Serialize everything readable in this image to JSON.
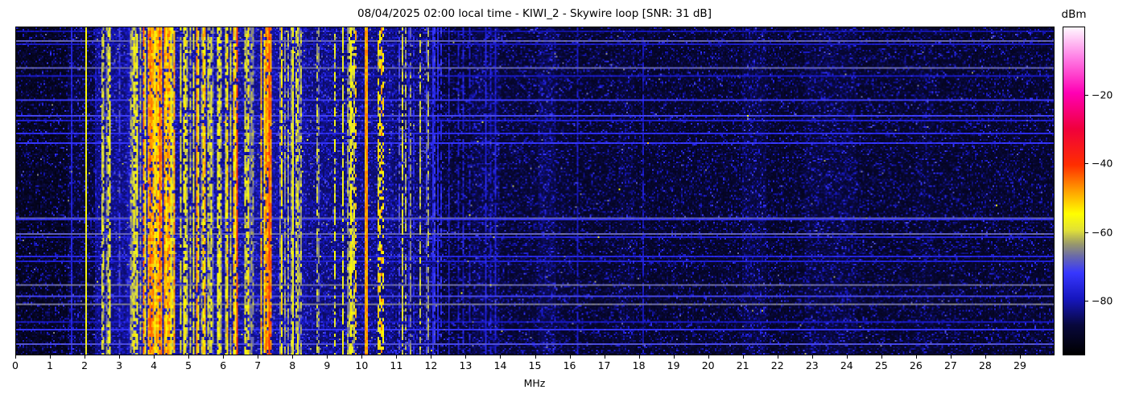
{
  "chart_data": {
    "type": "heatmap",
    "subtype": "radio-spectrogram-waterfall",
    "title": "08/04/2025 02:00 local time - KIWI_2 - Skywire loop [SNR: 31 dB]",
    "xlabel": "MHz",
    "colorbar_label": "dBm",
    "x_range_mhz": [
      0,
      30
    ],
    "x_ticks_mhz": [
      0,
      1,
      2,
      3,
      4,
      5,
      6,
      7,
      8,
      9,
      10,
      11,
      12,
      13,
      14,
      15,
      16,
      17,
      18,
      19,
      20,
      21,
      22,
      23,
      24,
      25,
      26,
      27,
      28,
      29
    ],
    "value_range_dbm": [
      -96,
      0
    ],
    "colorbar_ticks": [
      {
        "value": -20,
        "label": "−20"
      },
      {
        "value": -40,
        "label": "−40"
      },
      {
        "value": -60,
        "label": "−60"
      },
      {
        "value": -80,
        "label": "−80"
      }
    ],
    "legend_position": "right-colorbar",
    "grid": false,
    "background_noise_bands_dbm": [
      {
        "f1": 0.0,
        "f2": 1.5,
        "level": -93
      },
      {
        "f1": 1.5,
        "f2": 2.28,
        "level": -90
      },
      {
        "f1": 2.28,
        "f2": 3.2,
        "level": -85
      },
      {
        "f1": 3.2,
        "f2": 4.6,
        "level": -82.5
      },
      {
        "f1": 4.6,
        "f2": 8.42,
        "level": -84
      },
      {
        "f1": 8.42,
        "f2": 10.9,
        "level": -85.5
      },
      {
        "f1": 10.9,
        "f2": 12.1,
        "level": -86.5
      },
      {
        "f1": 12.1,
        "f2": 16.0,
        "level": -90.5
      },
      {
        "f1": 16.0,
        "f2": 30.0,
        "level": -91.5
      }
    ],
    "soft_bright_columns_db": [
      {
        "f1": 13.2,
        "f2": 14.0,
        "boost": 2.0
      },
      {
        "f1": 15.1,
        "f2": 15.6,
        "boost": 2.5
      },
      {
        "f1": 17.4,
        "f2": 17.9,
        "boost": 1.5
      },
      {
        "f1": 21.0,
        "f2": 21.7,
        "boost": 2.5
      },
      {
        "f1": 22.8,
        "f2": 24.3,
        "boost": 2.0
      },
      {
        "f1": 26.0,
        "f2": 26.5,
        "boost": 1.0
      }
    ],
    "activity_bands": [
      {
        "f1": 2.32,
        "f2": 2.78,
        "density": 0.55,
        "level": -62,
        "spread": 6,
        "gap": 0.25
      },
      {
        "f1": 2.78,
        "f2": 3.18,
        "density": 0.3,
        "level": -68,
        "spread": 6,
        "gap": 0.3
      },
      {
        "f1": 3.3,
        "f2": 3.62,
        "density": 0.6,
        "level": -58,
        "spread": 6,
        "gap": 0.2
      },
      {
        "f1": 3.62,
        "f2": 4.02,
        "density": 0.75,
        "level": -52,
        "spread": 7,
        "gap": 0.15
      },
      {
        "f1": 4.02,
        "f2": 4.35,
        "density": 0.85,
        "level": -48,
        "spread": 6,
        "gap": 0.12
      },
      {
        "f1": 4.35,
        "f2": 4.62,
        "density": 0.7,
        "level": -54,
        "spread": 7,
        "gap": 0.15
      },
      {
        "f1": 4.62,
        "f2": 5.1,
        "density": 0.45,
        "level": -62,
        "spread": 7,
        "gap": 0.25
      },
      {
        "f1": 5.1,
        "f2": 5.48,
        "density": 0.55,
        "level": -58,
        "spread": 7,
        "gap": 0.2
      },
      {
        "f1": 5.48,
        "f2": 5.92,
        "density": 0.5,
        "level": -61,
        "spread": 7,
        "gap": 0.22
      },
      {
        "f1": 5.92,
        "f2": 6.42,
        "density": 0.65,
        "level": -56,
        "spread": 7,
        "gap": 0.18
      },
      {
        "f1": 6.42,
        "f2": 7.08,
        "density": 0.45,
        "level": -62,
        "spread": 8,
        "gap": 0.25
      },
      {
        "f1": 7.08,
        "f2": 7.62,
        "density": 0.75,
        "level": -50,
        "spread": 7,
        "gap": 0.13
      },
      {
        "f1": 7.62,
        "f2": 8.1,
        "density": 0.5,
        "level": -59,
        "spread": 7,
        "gap": 0.2
      },
      {
        "f1": 8.1,
        "f2": 8.42,
        "density": 0.4,
        "level": -60,
        "spread": 6,
        "gap": 0.25
      },
      {
        "f1": 8.55,
        "f2": 9.0,
        "density": 0.18,
        "level": -66,
        "spread": 6,
        "gap": 0.3
      },
      {
        "f1": 9.0,
        "f2": 9.95,
        "density": 0.3,
        "level": -62,
        "spread": 7,
        "gap": 0.3
      },
      {
        "f1": 10.28,
        "f2": 10.72,
        "density": 0.3,
        "level": -56,
        "spread": 8,
        "gap": 0.5
      },
      {
        "f1": 11.05,
        "f2": 12.1,
        "density": 0.22,
        "level": -70,
        "spread": 7,
        "gap": 0.35
      },
      {
        "f1": 12.15,
        "f2": 14.0,
        "density": 0.08,
        "level": -78,
        "spread": 4,
        "gap": 0.3
      }
    ],
    "carrier_lines": [
      {
        "f": 1.56,
        "level": -77,
        "width_cols": 1,
        "duty": 1.0
      },
      {
        "f": 2.02,
        "level": -57,
        "width_cols": 1,
        "duty": 1.0
      },
      {
        "f": 2.48,
        "level": -60,
        "width_cols": 1,
        "duty": 0.75
      },
      {
        "f": 5.21,
        "level": -47,
        "width_cols": 1,
        "duty": 0.85
      },
      {
        "f": 6.35,
        "level": -42,
        "width_cols": 1,
        "duty": 0.92
      },
      {
        "f": 7.31,
        "level": -42,
        "width_cols": 1,
        "duty": 0.92
      },
      {
        "f": 8.01,
        "level": -58,
        "width_cols": 1,
        "duty": 0.8
      },
      {
        "f": 9.41,
        "level": -57,
        "width_cols": 1,
        "duty": 0.8
      },
      {
        "f": 9.65,
        "level": -56,
        "width_cols": 1,
        "duty": 0.85
      },
      {
        "f": 9.82,
        "level": -50,
        "width_cols": 1,
        "duty": 0.5
      },
      {
        "f": 10.07,
        "level": -48,
        "width_cols": 2,
        "duty": 1.0
      },
      {
        "f": 10.46,
        "level": -52,
        "width_cols": 1,
        "duty": 0.45
      },
      {
        "f": 10.61,
        "level": -54,
        "width_cols": 1,
        "duty": 0.45
      },
      {
        "f": 11.14,
        "level": -60,
        "width_cols": 1,
        "duty": 0.8
      },
      {
        "f": 11.66,
        "level": -62,
        "width_cols": 1,
        "duty": 0.7
      },
      {
        "f": 11.9,
        "level": -63,
        "width_cols": 1,
        "duty": 0.7
      },
      {
        "f": 12.03,
        "level": -75,
        "width_cols": 1,
        "duty": 0.9
      },
      {
        "f": 12.16,
        "level": -76,
        "width_cols": 1,
        "duty": 0.9
      },
      {
        "f": 12.5,
        "level": -77,
        "width_cols": 1,
        "duty": 0.9
      },
      {
        "f": 13.57,
        "level": -77,
        "width_cols": 1,
        "duty": 0.9
      },
      {
        "f": 13.85,
        "level": -78,
        "width_cols": 1,
        "duty": 0.9
      },
      {
        "f": 16.2,
        "level": -80,
        "width_cols": 1,
        "duty": 0.85
      },
      {
        "f": 18.1,
        "level": -80,
        "width_cols": 1,
        "duty": 0.8
      }
    ],
    "colormap_stops": [
      [
        0.0,
        0,
        0,
        0
      ],
      [
        0.09,
        8,
        8,
        60
      ],
      [
        0.17,
        22,
        22,
        190
      ],
      [
        0.25,
        55,
        55,
        255
      ],
      [
        0.3,
        105,
        105,
        170
      ],
      [
        0.34,
        155,
        155,
        105
      ],
      [
        0.38,
        225,
        225,
        55
      ],
      [
        0.43,
        255,
        255,
        0
      ],
      [
        0.5,
        255,
        160,
        0
      ],
      [
        0.58,
        255,
        45,
        0
      ],
      [
        0.69,
        240,
        0,
        60
      ],
      [
        0.8,
        255,
        0,
        180
      ],
      [
        0.91,
        255,
        130,
        230
      ],
      [
        1.0,
        255,
        248,
        255
      ]
    ],
    "render": {
      "cols": 646,
      "rows": 205,
      "row_bright_prob": 0.16,
      "speckle_mean_db": 3.2
    }
  }
}
